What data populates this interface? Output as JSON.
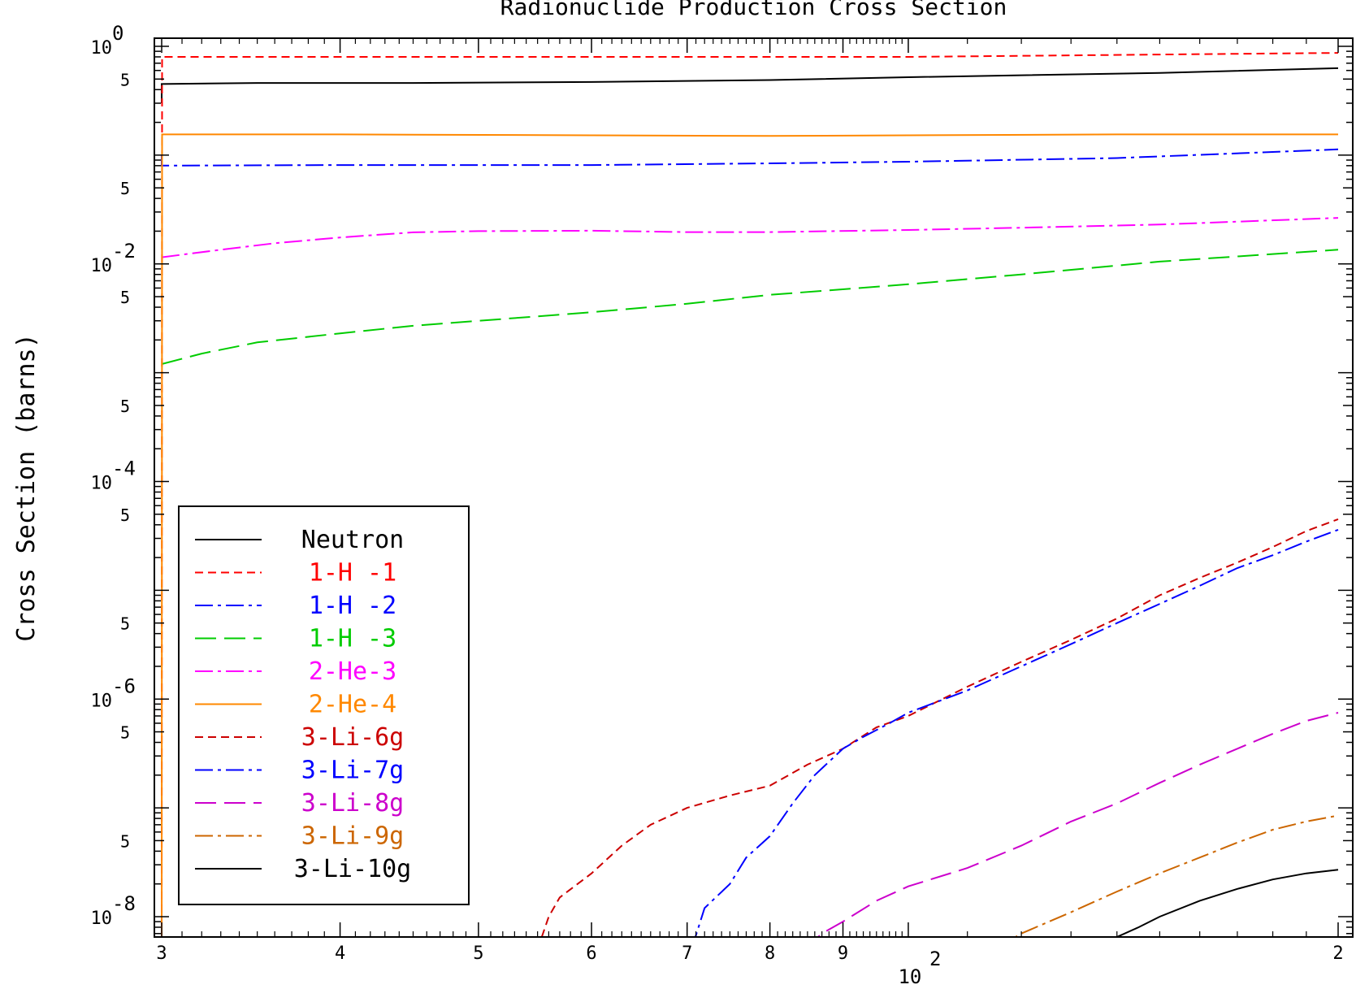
{
  "chart_data": {
    "type": "line",
    "title": "Radionuclide Production Cross Section",
    "xlabel": "",
    "ylabel": "Cross Section (barns)",
    "x_scale": "log",
    "y_scale": "log",
    "xlim": [
      29.5,
      205
    ],
    "ylim": [
      5e-09,
      1.2
    ],
    "x_ticks": [
      {
        "value": 30,
        "label": "3"
      },
      {
        "value": 40,
        "label": "4"
      },
      {
        "value": 50,
        "label": "5"
      },
      {
        "value": 60,
        "label": "6"
      },
      {
        "value": 70,
        "label": "7"
      },
      {
        "value": 80,
        "label": "8"
      },
      {
        "value": 90,
        "label": "9"
      },
      {
        "value": 100,
        "label": "10",
        "exp": "2"
      },
      {
        "value": 200,
        "label": "2"
      }
    ],
    "y_decades": [
      {
        "value": 1,
        "label": "10",
        "exp": "0"
      },
      {
        "value": 0.01,
        "label": "10",
        "exp": "-2"
      },
      {
        "value": 0.0001,
        "label": "10",
        "exp": "-4"
      },
      {
        "value": 1e-06,
        "label": "10",
        "exp": "-6"
      },
      {
        "value": 1e-08,
        "label": "10",
        "exp": "-8"
      }
    ],
    "y_five_label": "5",
    "y_five_ticks": [
      0.5,
      0.05,
      0.005,
      0.0005,
      5e-05,
      5e-06,
      5e-07,
      5e-08
    ],
    "legend_position": "bottom-left",
    "series": [
      {
        "name": "Neutron",
        "color": "#000000",
        "dash": "solid",
        "points": [
          [
            30,
            0.3
          ],
          [
            30,
            0.45
          ],
          [
            35,
            0.46
          ],
          [
            45,
            0.46
          ],
          [
            60,
            0.47
          ],
          [
            80,
            0.49
          ],
          [
            100,
            0.52
          ],
          [
            150,
            0.57
          ],
          [
            200,
            0.63
          ]
        ]
      },
      {
        "name": "1-H -1",
        "color": "#ff0000",
        "dash": "dash",
        "points": [
          [
            30,
            0.0
          ],
          [
            30.02,
            0.8
          ],
          [
            40,
            0.8
          ],
          [
            60,
            0.8
          ],
          [
            100,
            0.8
          ],
          [
            150,
            0.84
          ],
          [
            200,
            0.87
          ]
        ]
      },
      {
        "name": "1-H -2",
        "color": "#0000ff",
        "dash": "dashdot",
        "points": [
          [
            30,
            0.1
          ],
          [
            30,
            0.08
          ],
          [
            40,
            0.081
          ],
          [
            60,
            0.081
          ],
          [
            80,
            0.084
          ],
          [
            100,
            0.087
          ],
          [
            140,
            0.094
          ],
          [
            200,
            0.113
          ]
        ]
      },
      {
        "name": "1-H -3",
        "color": "#00cc00",
        "dash": "longdash",
        "points": [
          [
            30,
            0.0012
          ],
          [
            32,
            0.0015
          ],
          [
            35,
            0.0019
          ],
          [
            40,
            0.0023
          ],
          [
            45,
            0.0027
          ],
          [
            50,
            0.003
          ],
          [
            60,
            0.0036
          ],
          [
            70,
            0.0043
          ],
          [
            80,
            0.0052
          ],
          [
            100,
            0.0065
          ],
          [
            120,
            0.008
          ],
          [
            150,
            0.0105
          ],
          [
            200,
            0.0135
          ]
        ]
      },
      {
        "name": "2-He-3",
        "color": "#ff00ff",
        "dash": "dashdot",
        "points": [
          [
            30,
            0.0115
          ],
          [
            33,
            0.0135
          ],
          [
            36,
            0.0155
          ],
          [
            40,
            0.0175
          ],
          [
            45,
            0.0195
          ],
          [
            50,
            0.02
          ],
          [
            60,
            0.0202
          ],
          [
            70,
            0.0196
          ],
          [
            80,
            0.0196
          ],
          [
            100,
            0.0205
          ],
          [
            120,
            0.0215
          ],
          [
            150,
            0.023
          ],
          [
            200,
            0.0265
          ]
        ]
      },
      {
        "name": "2-He-4",
        "color": "#ff8800",
        "dash": "solid",
        "points": [
          [
            30,
            0.0
          ],
          [
            30.02,
            0.155
          ],
          [
            40,
            0.155
          ],
          [
            60,
            0.152
          ],
          [
            80,
            0.15
          ],
          [
            100,
            0.152
          ],
          [
            140,
            0.155
          ],
          [
            200,
            0.155
          ]
        ]
      },
      {
        "name": "3-Li-6g",
        "color": "#cc0000",
        "dash": "dash",
        "points": [
          [
            55,
            5e-09
          ],
          [
            56,
            1e-08
          ],
          [
            57,
            1.5e-08
          ],
          [
            60,
            2.5e-08
          ],
          [
            63,
            4.5e-08
          ],
          [
            66,
            7e-08
          ],
          [
            70,
            1e-07
          ],
          [
            75,
            1.3e-07
          ],
          [
            80,
            1.6e-07
          ],
          [
            85,
            2.5e-07
          ],
          [
            90,
            3.5e-07
          ],
          [
            95,
            5.5e-07
          ],
          [
            100,
            7e-07
          ],
          [
            110,
            1.3e-06
          ],
          [
            120,
            2.2e-06
          ],
          [
            130,
            3.5e-06
          ],
          [
            140,
            5.5e-06
          ],
          [
            150,
            9e-06
          ],
          [
            160,
            1.3e-05
          ],
          [
            170,
            1.8e-05
          ],
          [
            180,
            2.5e-05
          ],
          [
            190,
            3.5e-05
          ],
          [
            200,
            4.5e-05
          ]
        ]
      },
      {
        "name": "3-Li-7g",
        "color": "#0000ff",
        "dash": "dashdot",
        "points": [
          [
            70.5,
            5e-09
          ],
          [
            72,
            1.2e-08
          ],
          [
            75,
            2e-08
          ],
          [
            77,
            3.5e-08
          ],
          [
            80,
            5.5e-08
          ],
          [
            83,
            1.1e-07
          ],
          [
            86,
            2e-07
          ],
          [
            90,
            3.5e-07
          ],
          [
            93,
            4.5e-07
          ],
          [
            97,
            6e-07
          ],
          [
            100,
            7.5e-07
          ],
          [
            110,
            1.2e-06
          ],
          [
            120,
            2e-06
          ],
          [
            130,
            3.2e-06
          ],
          [
            140,
            5e-06
          ],
          [
            150,
            7.5e-06
          ],
          [
            160,
            1.1e-05
          ],
          [
            170,
            1.6e-05
          ],
          [
            180,
            2.1e-05
          ],
          [
            190,
            2.8e-05
          ],
          [
            200,
            3.6e-05
          ]
        ]
      },
      {
        "name": "3-Li-8g",
        "color": "#cc00cc",
        "dash": "longdash",
        "points": [
          [
            84.5,
            5e-09
          ],
          [
            87,
            7e-09
          ],
          [
            90,
            9e-09
          ],
          [
            95,
            1.4e-08
          ],
          [
            100,
            1.9e-08
          ],
          [
            110,
            2.8e-08
          ],
          [
            120,
            4.5e-08
          ],
          [
            130,
            7.5e-08
          ],
          [
            140,
            1.1e-07
          ],
          [
            150,
            1.7e-07
          ],
          [
            160,
            2.5e-07
          ],
          [
            170,
            3.5e-07
          ],
          [
            180,
            4.8e-07
          ],
          [
            190,
            6.3e-07
          ],
          [
            200,
            7.5e-07
          ]
        ]
      },
      {
        "name": "3-Li-9g",
        "color": "#cc6600",
        "dash": "dashdot",
        "points": [
          [
            115,
            5e-09
          ],
          [
            120,
            7e-09
          ],
          [
            130,
            1.1e-08
          ],
          [
            140,
            1.7e-08
          ],
          [
            150,
            2.5e-08
          ],
          [
            160,
            3.5e-08
          ],
          [
            170,
            4.8e-08
          ],
          [
            180,
            6.3e-08
          ],
          [
            190,
            7.5e-08
          ],
          [
            200,
            8.5e-08
          ]
        ]
      },
      {
        "name": "3-Li-10g",
        "color": "#000000",
        "dash": "solid",
        "points": [
          [
            137,
            5e-09
          ],
          [
            140,
            6.5e-09
          ],
          [
            145,
            8e-09
          ],
          [
            150,
            1e-08
          ],
          [
            160,
            1.4e-08
          ],
          [
            170,
            1.8e-08
          ],
          [
            180,
            2.2e-08
          ],
          [
            190,
            2.5e-08
          ],
          [
            200,
            2.7e-08
          ]
        ]
      }
    ]
  }
}
